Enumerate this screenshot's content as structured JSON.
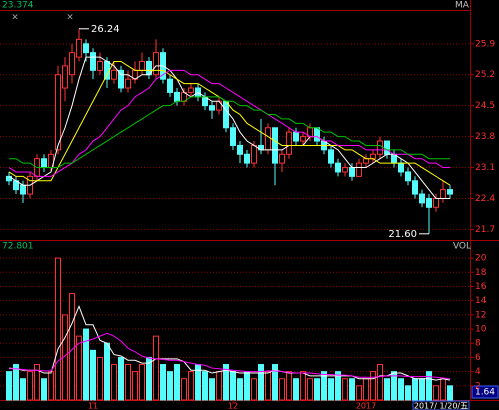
{
  "chart_data": [
    {
      "type": "candlestick",
      "header_value": "23.374",
      "indicator_label": "MA",
      "up_color": "#ff3232",
      "down_color": "#54fcfc",
      "grid": true,
      "ylim": [
        21.46,
        26.62
      ],
      "yticks": [
        21.7,
        22.4,
        23.1,
        23.8,
        24.5,
        25.2,
        25.9
      ],
      "annotations": [
        "26.24",
        "21.60"
      ],
      "open": [
        22.9,
        22.8,
        22.7,
        22.5,
        22.9,
        23.3,
        23.1,
        23.5,
        24.9,
        25.2,
        25.6,
        25.9,
        25.7,
        25.3,
        25.5,
        25.1,
        25.3,
        24.9,
        25.1,
        25.3,
        25.5,
        25.2,
        25.7,
        25.1,
        24.8,
        24.6,
        24.8,
        24.9,
        24.7,
        24.5,
        24.4,
        24.6,
        24.0,
        23.6,
        23.4,
        23.2,
        23.6,
        23.5,
        24.0,
        23.2,
        23.4,
        23.9,
        23.7,
        23.8,
        24.0,
        23.7,
        23.5,
        23.2,
        23.0,
        23.1,
        22.9,
        23.2,
        23.3,
        23.4,
        23.7,
        23.4,
        23.2,
        23.0,
        22.8,
        22.5,
        22.4,
        22.2,
        22.4,
        22.6
      ],
      "high": [
        23.0,
        22.9,
        22.8,
        23.0,
        23.4,
        23.4,
        23.5,
        25.4,
        25.6,
        25.9,
        26.24,
        26.0,
        25.8,
        25.7,
        25.6,
        25.5,
        25.4,
        25.3,
        25.5,
        25.7,
        25.6,
        26.0,
        25.8,
        25.2,
        24.9,
        24.9,
        25.0,
        25.0,
        24.8,
        24.6,
        24.7,
        24.6,
        24.1,
        23.7,
        23.5,
        23.7,
        24.2,
        24.1,
        24.0,
        23.5,
        24.0,
        24.0,
        23.9,
        24.1,
        24.0,
        23.8,
        23.6,
        23.3,
        23.2,
        23.2,
        23.3,
        23.4,
        23.5,
        23.8,
        23.7,
        23.5,
        23.3,
        23.1,
        22.9,
        22.6,
        22.5,
        22.5,
        22.8,
        22.7
      ],
      "low": [
        22.7,
        22.5,
        22.3,
        22.4,
        22.8,
        23.0,
        23.0,
        23.4,
        24.6,
        25.0,
        25.5,
        25.5,
        25.1,
        25.2,
        24.9,
        25.0,
        24.8,
        24.8,
        25.0,
        25.2,
        25.1,
        25.1,
        25.0,
        24.7,
        24.5,
        24.5,
        24.7,
        24.6,
        24.4,
        24.2,
        24.3,
        23.9,
        23.5,
        23.2,
        23.1,
        23.1,
        23.4,
        23.4,
        22.7,
        23.0,
        23.3,
        23.6,
        23.6,
        23.7,
        23.6,
        23.4,
        23.1,
        22.9,
        22.9,
        22.8,
        22.9,
        23.1,
        23.2,
        23.3,
        23.3,
        23.1,
        22.9,
        22.7,
        22.4,
        22.2,
        21.6,
        22.1,
        22.3,
        22.4
      ],
      "close": [
        22.8,
        22.6,
        22.5,
        22.9,
        23.3,
        23.1,
        23.4,
        25.2,
        25.4,
        25.7,
        26.0,
        25.7,
        25.3,
        25.5,
        25.1,
        25.3,
        24.9,
        25.1,
        25.3,
        25.5,
        25.2,
        25.7,
        25.1,
        24.8,
        24.6,
        24.8,
        24.9,
        24.7,
        24.5,
        24.4,
        24.6,
        24.0,
        23.6,
        23.4,
        23.2,
        23.6,
        23.5,
        24.0,
        23.2,
        23.4,
        23.9,
        23.7,
        23.8,
        24.0,
        23.7,
        23.5,
        23.2,
        23.0,
        23.1,
        22.9,
        23.2,
        23.3,
        23.4,
        23.7,
        23.4,
        23.2,
        23.0,
        22.8,
        22.5,
        22.3,
        22.2,
        22.4,
        22.6,
        22.5
      ],
      "lines": [
        {
          "color": "#ffffff",
          "values": [
            22.9,
            22.8,
            22.7,
            22.7,
            22.8,
            22.9,
            23.0,
            23.6,
            24.0,
            24.5,
            25.1,
            25.6,
            25.6,
            25.6,
            25.5,
            25.4,
            25.2,
            25.2,
            25.1,
            25.2,
            25.2,
            25.4,
            25.4,
            25.3,
            25.1,
            24.8,
            24.7,
            24.8,
            24.7,
            24.6,
            24.6,
            24.4,
            24.2,
            23.9,
            23.7,
            23.6,
            23.5,
            23.5,
            23.5,
            23.5,
            23.6,
            23.6,
            23.6,
            23.8,
            23.8,
            23.7,
            23.6,
            23.5,
            23.3,
            23.1,
            23.1,
            23.1,
            23.2,
            23.3,
            23.4,
            23.4,
            23.3,
            23.2,
            23.0,
            22.8,
            22.6,
            22.4,
            22.4,
            22.4
          ]
        },
        {
          "color": "#ffff00",
          "values": [
            23.0,
            22.9,
            22.9,
            22.8,
            22.8,
            22.8,
            22.8,
            23.1,
            23.4,
            23.7,
            24.0,
            24.3,
            24.6,
            24.9,
            25.2,
            25.5,
            25.5,
            25.4,
            25.3,
            25.3,
            25.3,
            25.3,
            25.3,
            25.2,
            25.1,
            25.0,
            25.0,
            25.0,
            24.9,
            24.8,
            24.7,
            24.6,
            24.4,
            24.3,
            24.1,
            24.0,
            23.9,
            23.8,
            23.7,
            23.6,
            23.6,
            23.6,
            23.6,
            23.6,
            23.6,
            23.6,
            23.6,
            23.6,
            23.5,
            23.5,
            23.4,
            23.3,
            23.3,
            23.2,
            23.2,
            23.2,
            23.2,
            23.2,
            23.2,
            23.1,
            23.0,
            22.9,
            22.8,
            22.7
          ]
        },
        {
          "color": "#ff00ff",
          "values": [
            23.1,
            23.0,
            23.0,
            23.0,
            22.9,
            22.9,
            22.9,
            23.0,
            23.1,
            23.2,
            23.4,
            23.5,
            23.7,
            23.8,
            24.0,
            24.2,
            24.4,
            24.5,
            24.7,
            24.8,
            24.9,
            25.1,
            25.2,
            25.3,
            25.3,
            25.3,
            25.2,
            25.2,
            25.1,
            25.0,
            25.0,
            24.9,
            24.8,
            24.7,
            24.6,
            24.5,
            24.4,
            24.3,
            24.2,
            24.1,
            24.0,
            23.9,
            23.9,
            23.8,
            23.8,
            23.7,
            23.7,
            23.6,
            23.6,
            23.6,
            23.6,
            23.5,
            23.5,
            23.5,
            23.5,
            23.4,
            23.4,
            23.4,
            23.3,
            23.3,
            23.2,
            23.2,
            23.1,
            23.1
          ]
        },
        {
          "color": "#00c000",
          "values": [
            23.3,
            23.3,
            23.2,
            23.2,
            23.1,
            23.1,
            23.1,
            23.1,
            23.2,
            23.2,
            23.3,
            23.4,
            23.5,
            23.6,
            23.7,
            23.8,
            23.9,
            24.0,
            24.1,
            24.2,
            24.3,
            24.4,
            24.5,
            24.5,
            24.6,
            24.6,
            24.7,
            24.7,
            24.7,
            24.7,
            24.7,
            24.6,
            24.6,
            24.5,
            24.5,
            24.4,
            24.4,
            24.3,
            24.3,
            24.2,
            24.2,
            24.1,
            24.1,
            24.0,
            24.0,
            23.9,
            23.9,
            23.8,
            23.8,
            23.7,
            23.7,
            23.6,
            23.6,
            23.6,
            23.5,
            23.5,
            23.5,
            23.4,
            23.4,
            23.4,
            23.3,
            23.3,
            23.3,
            23.3
          ]
        }
      ]
    },
    {
      "type": "volume_bar",
      "header_value": "72.801",
      "indicator_label": "VOL",
      "grid": true,
      "ylim": [
        0,
        21
      ],
      "yticks": [
        2,
        4,
        6,
        8,
        10,
        12,
        14,
        16,
        18,
        20
      ],
      "current_label": "1.64",
      "cursor_label": "2017/ 1/20/五",
      "categories": [
        null,
        null,
        null,
        null,
        null,
        null,
        null,
        null,
        null,
        null,
        null,
        null,
        "11",
        null,
        null,
        null,
        null,
        null,
        null,
        null,
        null,
        null,
        null,
        null,
        null,
        null,
        null,
        null,
        null,
        null,
        null,
        null,
        "12",
        null,
        null,
        null,
        null,
        null,
        null,
        null,
        null,
        null,
        null,
        null,
        null,
        null,
        null,
        null,
        null,
        null,
        null,
        "2017",
        null,
        null,
        null,
        null,
        null,
        null,
        null,
        null,
        null,
        null,
        null,
        null
      ],
      "values": [
        4,
        5,
        3,
        4,
        5,
        3,
        4,
        20,
        12,
        15,
        9,
        10,
        7,
        6,
        8,
        5,
        6,
        5,
        4,
        5,
        6,
        9,
        5,
        4,
        5,
        3,
        4,
        5,
        4,
        3,
        4,
        5,
        4,
        3,
        4,
        3,
        5,
        4,
        5,
        3,
        4,
        3,
        4,
        3,
        3,
        4,
        3,
        4,
        3,
        3,
        2,
        3,
        4,
        5,
        3,
        4,
        3,
        2,
        3,
        3,
        4,
        2,
        3,
        2
      ],
      "lines": [
        {
          "color": "#ffffff",
          "values": [
            4.5,
            4.4,
            4.2,
            4.2,
            4.2,
            3.8,
            3.8,
            7.2,
            8.8,
            10.8,
            13.2,
            10.6,
            10.6,
            8.4,
            8.0,
            6.4,
            6.2,
            5.6,
            5.6,
            5.2,
            5.2,
            5.8,
            5.8,
            5.8,
            5.8,
            5.4,
            4.2,
            4.2,
            4.2,
            3.8,
            4.0,
            4.2,
            4.0,
            3.8,
            3.8,
            3.8,
            3.8,
            3.8,
            4.2,
            4.0,
            3.8,
            3.8,
            3.8,
            3.4,
            3.4,
            3.4,
            3.4,
            3.4,
            3.4,
            3.4,
            3.0,
            3.0,
            3.0,
            3.4,
            3.4,
            3.8,
            3.8,
            3.4,
            3.0,
            3.0,
            3.0,
            2.8,
            3.0,
            2.8
          ]
        },
        {
          "color": "#ff00ff",
          "values": [
            4.4,
            4.4,
            4.3,
            4.2,
            4.2,
            4.1,
            4.1,
            5.5,
            6.2,
            7.1,
            8.0,
            8.3,
            8.6,
            9.0,
            9.4,
            9.0,
            8.3,
            7.3,
            6.8,
            6.2,
            5.9,
            5.8,
            5.7,
            5.6,
            5.6,
            5.4,
            5.2,
            5.0,
            4.9,
            4.5,
            4.4,
            4.3,
            4.2,
            4.1,
            4.0,
            4.0,
            4.0,
            4.1,
            4.1,
            4.0,
            3.9,
            3.8,
            3.8,
            3.8,
            3.7,
            3.6,
            3.6,
            3.5,
            3.5,
            3.4,
            3.2,
            3.2,
            3.2,
            3.3,
            3.4,
            3.4,
            3.4,
            3.3,
            3.3,
            3.3,
            3.3,
            3.2,
            3.1,
            3.0
          ]
        }
      ]
    }
  ]
}
